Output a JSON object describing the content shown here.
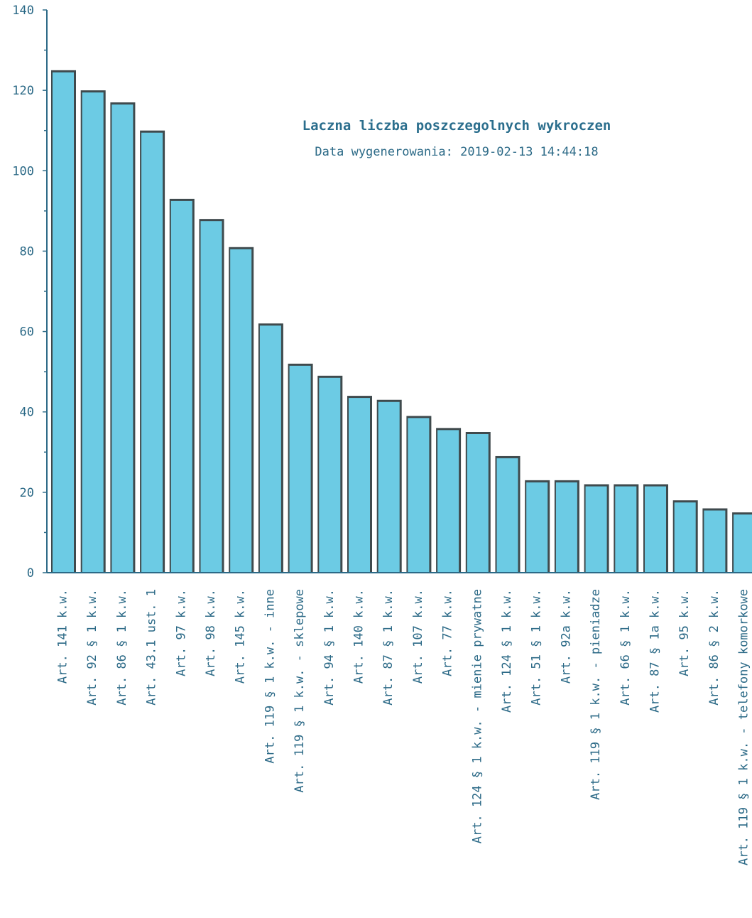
{
  "chart_data": {
    "type": "bar",
    "title": "Laczna liczba poszczegolnych wykroczen",
    "subtitle": "Data wygenerowania: 2019-02-13 14:44:18",
    "xlabel": "",
    "ylabel": "",
    "ylim": [
      0,
      140
    ],
    "yticks": [
      "0",
      "20",
      "40",
      "60",
      "80",
      "100",
      "120",
      "140"
    ],
    "grid": false,
    "colors": {
      "bar": "#6ccbe4",
      "bar_edge": "#3f4a4d",
      "axis": "#2c6a87",
      "title": "#2b6e8d"
    },
    "categories": [
      "Art. 141 k.w.",
      "Art. 92 § 1 k.w.",
      "Art. 86 § 1 k.w.",
      "Art. 43.1 ust. 1",
      "Art. 97 k.w.",
      "Art. 98 k.w.",
      "Art. 145 k.w.",
      "Art. 119 § 1 k.w. - inne",
      "Art. 119 § 1 k.w. - sklepowe",
      "Art. 94 § 1 k.w.",
      "Art. 140 k.w.",
      "Art. 87 § 1 k.w.",
      "Art. 107 k.w.",
      "Art. 77 k.w.",
      "Art. 124 § 1 k.w. - mienie prywatne",
      "Art. 124 § 1 k.w.",
      "Art. 51 § 1 k.w.",
      "Art. 92a k.w.",
      "Art. 119 § 1 k.w. - pieniadze",
      "Art. 66 § 1 k.w.",
      "Art. 87 § 1a k.w.",
      "Art. 95 k.w.",
      "Art. 86 § 2 k.w.",
      "Art. 119 § 1 k.w. - telefony komorkowe"
    ],
    "values": [
      125,
      120,
      117,
      110,
      93,
      88,
      81,
      62,
      52,
      49,
      44,
      43,
      39,
      36,
      35,
      29,
      23,
      23,
      22,
      22,
      22,
      18,
      16,
      15
    ]
  }
}
